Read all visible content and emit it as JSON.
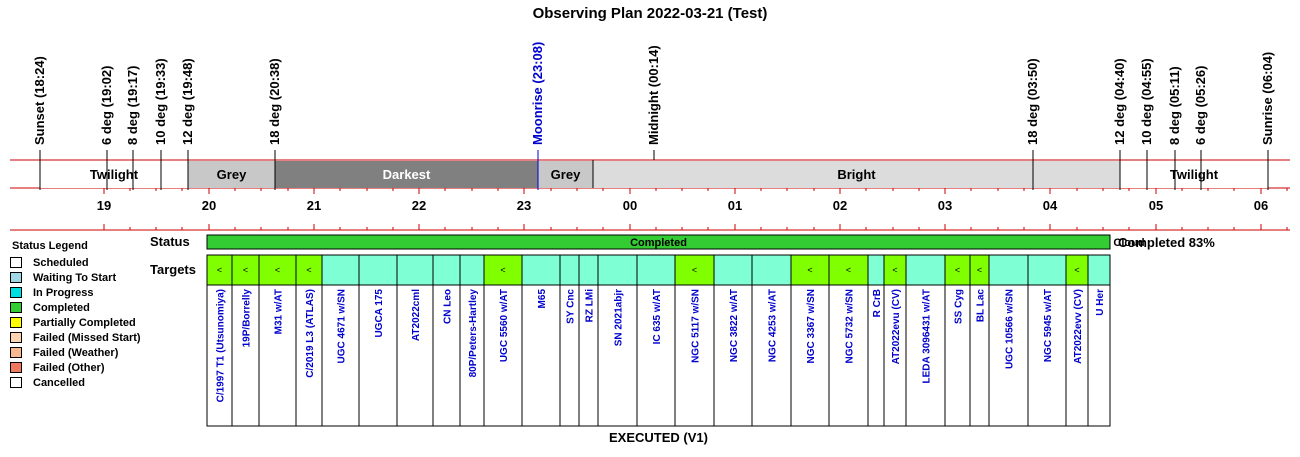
{
  "title": "Observing Plan 2022-03-21 (Test)",
  "chart_data": {
    "type": "timeline",
    "x_axis": {
      "start_time": "18:00",
      "end_time": "06:24",
      "hour_labels": [
        "19",
        "20",
        "21",
        "22",
        "23",
        "00",
        "01",
        "02",
        "03",
        "04",
        "05",
        "06"
      ]
    },
    "events": [
      {
        "label": "Sunset (18:24)",
        "time": 18.4,
        "color": "#000000"
      },
      {
        "label": "6 deg (19:02)",
        "time": 19.033,
        "color": "#000000"
      },
      {
        "label": "8 deg (19:17)",
        "time": 19.283,
        "color": "#000000"
      },
      {
        "label": "10 deg (19:33)",
        "time": 19.55,
        "color": "#000000"
      },
      {
        "label": "12 deg (19:48)",
        "time": 19.8,
        "color": "#000000"
      },
      {
        "label": "18 deg (20:38)",
        "time": 20.633,
        "color": "#000000"
      },
      {
        "label": "Moonrise (23:08)",
        "time": 23.133,
        "color": "#0000cc"
      },
      {
        "label": "Midnight (00:14)",
        "time": 24.233,
        "color": "#000000"
      },
      {
        "label": "18 deg (03:50)",
        "time": 27.833,
        "color": "#000000"
      },
      {
        "label": "12 deg (04:40)",
        "time": 28.667,
        "color": "#000000"
      },
      {
        "label": "10 deg (04:55)",
        "time": 28.917,
        "color": "#000000"
      },
      {
        "label": "8 deg (05:11)",
        "time": 29.183,
        "color": "#000000"
      },
      {
        "label": "6 deg (05:26)",
        "time": 29.433,
        "color": "#000000"
      },
      {
        "label": "Sunrise (06:04)",
        "time": 30.067,
        "color": "#000000"
      }
    ],
    "sky": [
      {
        "label": "Twilight",
        "start": 18.4,
        "end": 19.8,
        "color": "#ffffff",
        "text_color": "#000000"
      },
      {
        "label": "Grey",
        "start": 19.8,
        "end": 20.633,
        "color": "#c8c8c8",
        "text_color": "#000000"
      },
      {
        "label": "Darkest",
        "start": 20.633,
        "end": 23.133,
        "color": "#808080",
        "text_color": "#ffffff"
      },
      {
        "label": "Grey",
        "start": 23.133,
        "end": 23.65,
        "color": "#c8c8c8",
        "text_color": "#000000"
      },
      {
        "label": "Bright",
        "start": 23.65,
        "end": 28.667,
        "color": "#dcdcdc",
        "text_color": "#000000"
      },
      {
        "label": "Twilight",
        "start": 28.667,
        "end": 30.067,
        "color": "#ffffff",
        "text_color": "#000000"
      }
    ],
    "status": [
      {
        "label": "Completed",
        "start": 19.825,
        "end": 28.93,
        "color": "#33cc33"
      },
      {
        "label": "Cloud",
        "start": 28.93,
        "end": 30.0,
        "color": "#fa9b82"
      },
      {
        "label": "",
        "start": 30.0,
        "end": 30.2,
        "color": "#fa9b82"
      }
    ],
    "completion": "Completed 83%",
    "targets": [
      {
        "name": "C/1997 T1 (Utsunomiya)",
        "done": true
      },
      {
        "name": "19P/Borrelly",
        "done": true
      },
      {
        "name": "M31 w/AT",
        "done": true
      },
      {
        "name": "C/2019 L3 (ATLAS)",
        "done": true
      },
      {
        "name": "UGC 4671 w/SN",
        "done": false
      },
      {
        "name": "UGCA 175",
        "done": false
      },
      {
        "name": "AT2022cml",
        "done": false
      },
      {
        "name": "CN Leo",
        "done": false
      },
      {
        "name": "80P/Peters-Hartley",
        "done": false
      },
      {
        "name": "UGC 5560 w/AT",
        "done": true
      },
      {
        "name": "M65",
        "done": false
      },
      {
        "name": "SY Cnc",
        "done": false
      },
      {
        "name": "RZ LMi",
        "done": false
      },
      {
        "name": "SN 2021abjr",
        "done": false
      },
      {
        "name": "IC 635 w/AT",
        "done": false
      },
      {
        "name": "NGC 5117 w/SN",
        "done": true
      },
      {
        "name": "NGC 3822 w/AT",
        "done": false
      },
      {
        "name": "NGC 4253 w/AT",
        "done": false
      },
      {
        "name": "NGC 3367 w/SN",
        "done": true
      },
      {
        "name": "NGC 5732 w/SN",
        "done": true
      },
      {
        "name": "R CrB",
        "done": false
      },
      {
        "name": "AT2022evu (CV)",
        "done": true
      },
      {
        "name": "LEDA 3096431 w/AT",
        "done": false
      },
      {
        "name": "SS Cyg",
        "done": true
      },
      {
        "name": "BL Lac",
        "done": true
      },
      {
        "name": "UGC 10566 w/SN",
        "done": false
      },
      {
        "name": "NGC 5945 w/AT",
        "done": false
      },
      {
        "name": "AT2022evv (CV)",
        "done": true
      },
      {
        "name": "U Her",
        "done": false
      }
    ],
    "target_mark": "<"
  },
  "labels": {
    "status": "Status",
    "targets": "Targets",
    "footer": "EXECUTED (V1)"
  },
  "legend": {
    "title": "Status Legend",
    "items": [
      {
        "label": "Scheduled",
        "color": "#ffffff"
      },
      {
        "label": "Waiting To Start",
        "color": "#a0d8e8"
      },
      {
        "label": "In Progress",
        "color": "#00e0e0"
      },
      {
        "label": "Completed",
        "color": "#33cc33"
      },
      {
        "label": "Partially Completed",
        "color": "#ffff00"
      },
      {
        "label": "Failed (Missed Start)",
        "color": "#fcd4b0"
      },
      {
        "label": "Failed (Weather)",
        "color": "#f8b890"
      },
      {
        "label": "Failed (Other)",
        "color": "#f07860"
      },
      {
        "label": "Cancelled",
        "color": "#ffffff"
      }
    ]
  },
  "colors": {
    "pending": "#7fffd4",
    "done": "#7fff00",
    "grid": "#cc0000",
    "target_text": "#0000cc"
  }
}
